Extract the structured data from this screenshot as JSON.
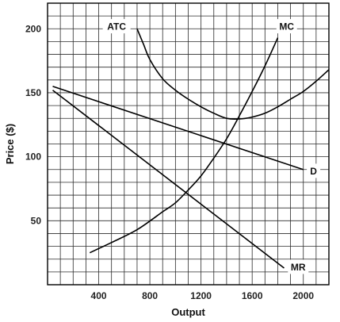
{
  "chart_data": {
    "type": "line",
    "xlabel": "Output",
    "ylabel": "Price ($)",
    "xlim": [
      0,
      2200
    ],
    "ylim": [
      0,
      220
    ],
    "x_ticks": [
      400,
      800,
      1200,
      1600,
      2000
    ],
    "y_ticks": [
      50,
      100,
      150,
      200
    ],
    "grid": true,
    "series": [
      {
        "name": "ATC",
        "x": [
          700,
          750,
          800,
          900,
          1000,
          1100,
          1200,
          1300,
          1400,
          1500,
          1600,
          1700,
          1800,
          1900,
          2000,
          2100,
          2200
        ],
        "y": [
          200,
          188,
          176,
          161,
          152,
          145,
          139,
          134,
          130,
          129.5,
          131,
          134,
          139,
          145,
          151,
          159,
          168
        ]
      },
      {
        "name": "MC",
        "x": [
          330,
          500,
          700,
          900,
          1000,
          1100,
          1200,
          1300,
          1400,
          1500,
          1600,
          1700,
          1800
        ],
        "y": [
          25,
          33,
          43,
          57,
          64,
          74,
          85,
          99,
          114,
          132,
          151,
          171,
          193
        ]
      },
      {
        "name": "D",
        "x": [
          40,
          2000
        ],
        "y": [
          155,
          90
        ]
      },
      {
        "name": "MR",
        "x": [
          40,
          1850
        ],
        "y": [
          152,
          13
        ]
      }
    ],
    "labels": [
      {
        "series": "ATC",
        "text": "ATC",
        "x": 540,
        "y": 202
      },
      {
        "series": "MC",
        "text": "MC",
        "x": 1870,
        "y": 202
      },
      {
        "series": "D",
        "text": "D",
        "x": 2080,
        "y": 89
      },
      {
        "series": "MR",
        "text": "MR",
        "x": 1960,
        "y": 14
      }
    ]
  }
}
